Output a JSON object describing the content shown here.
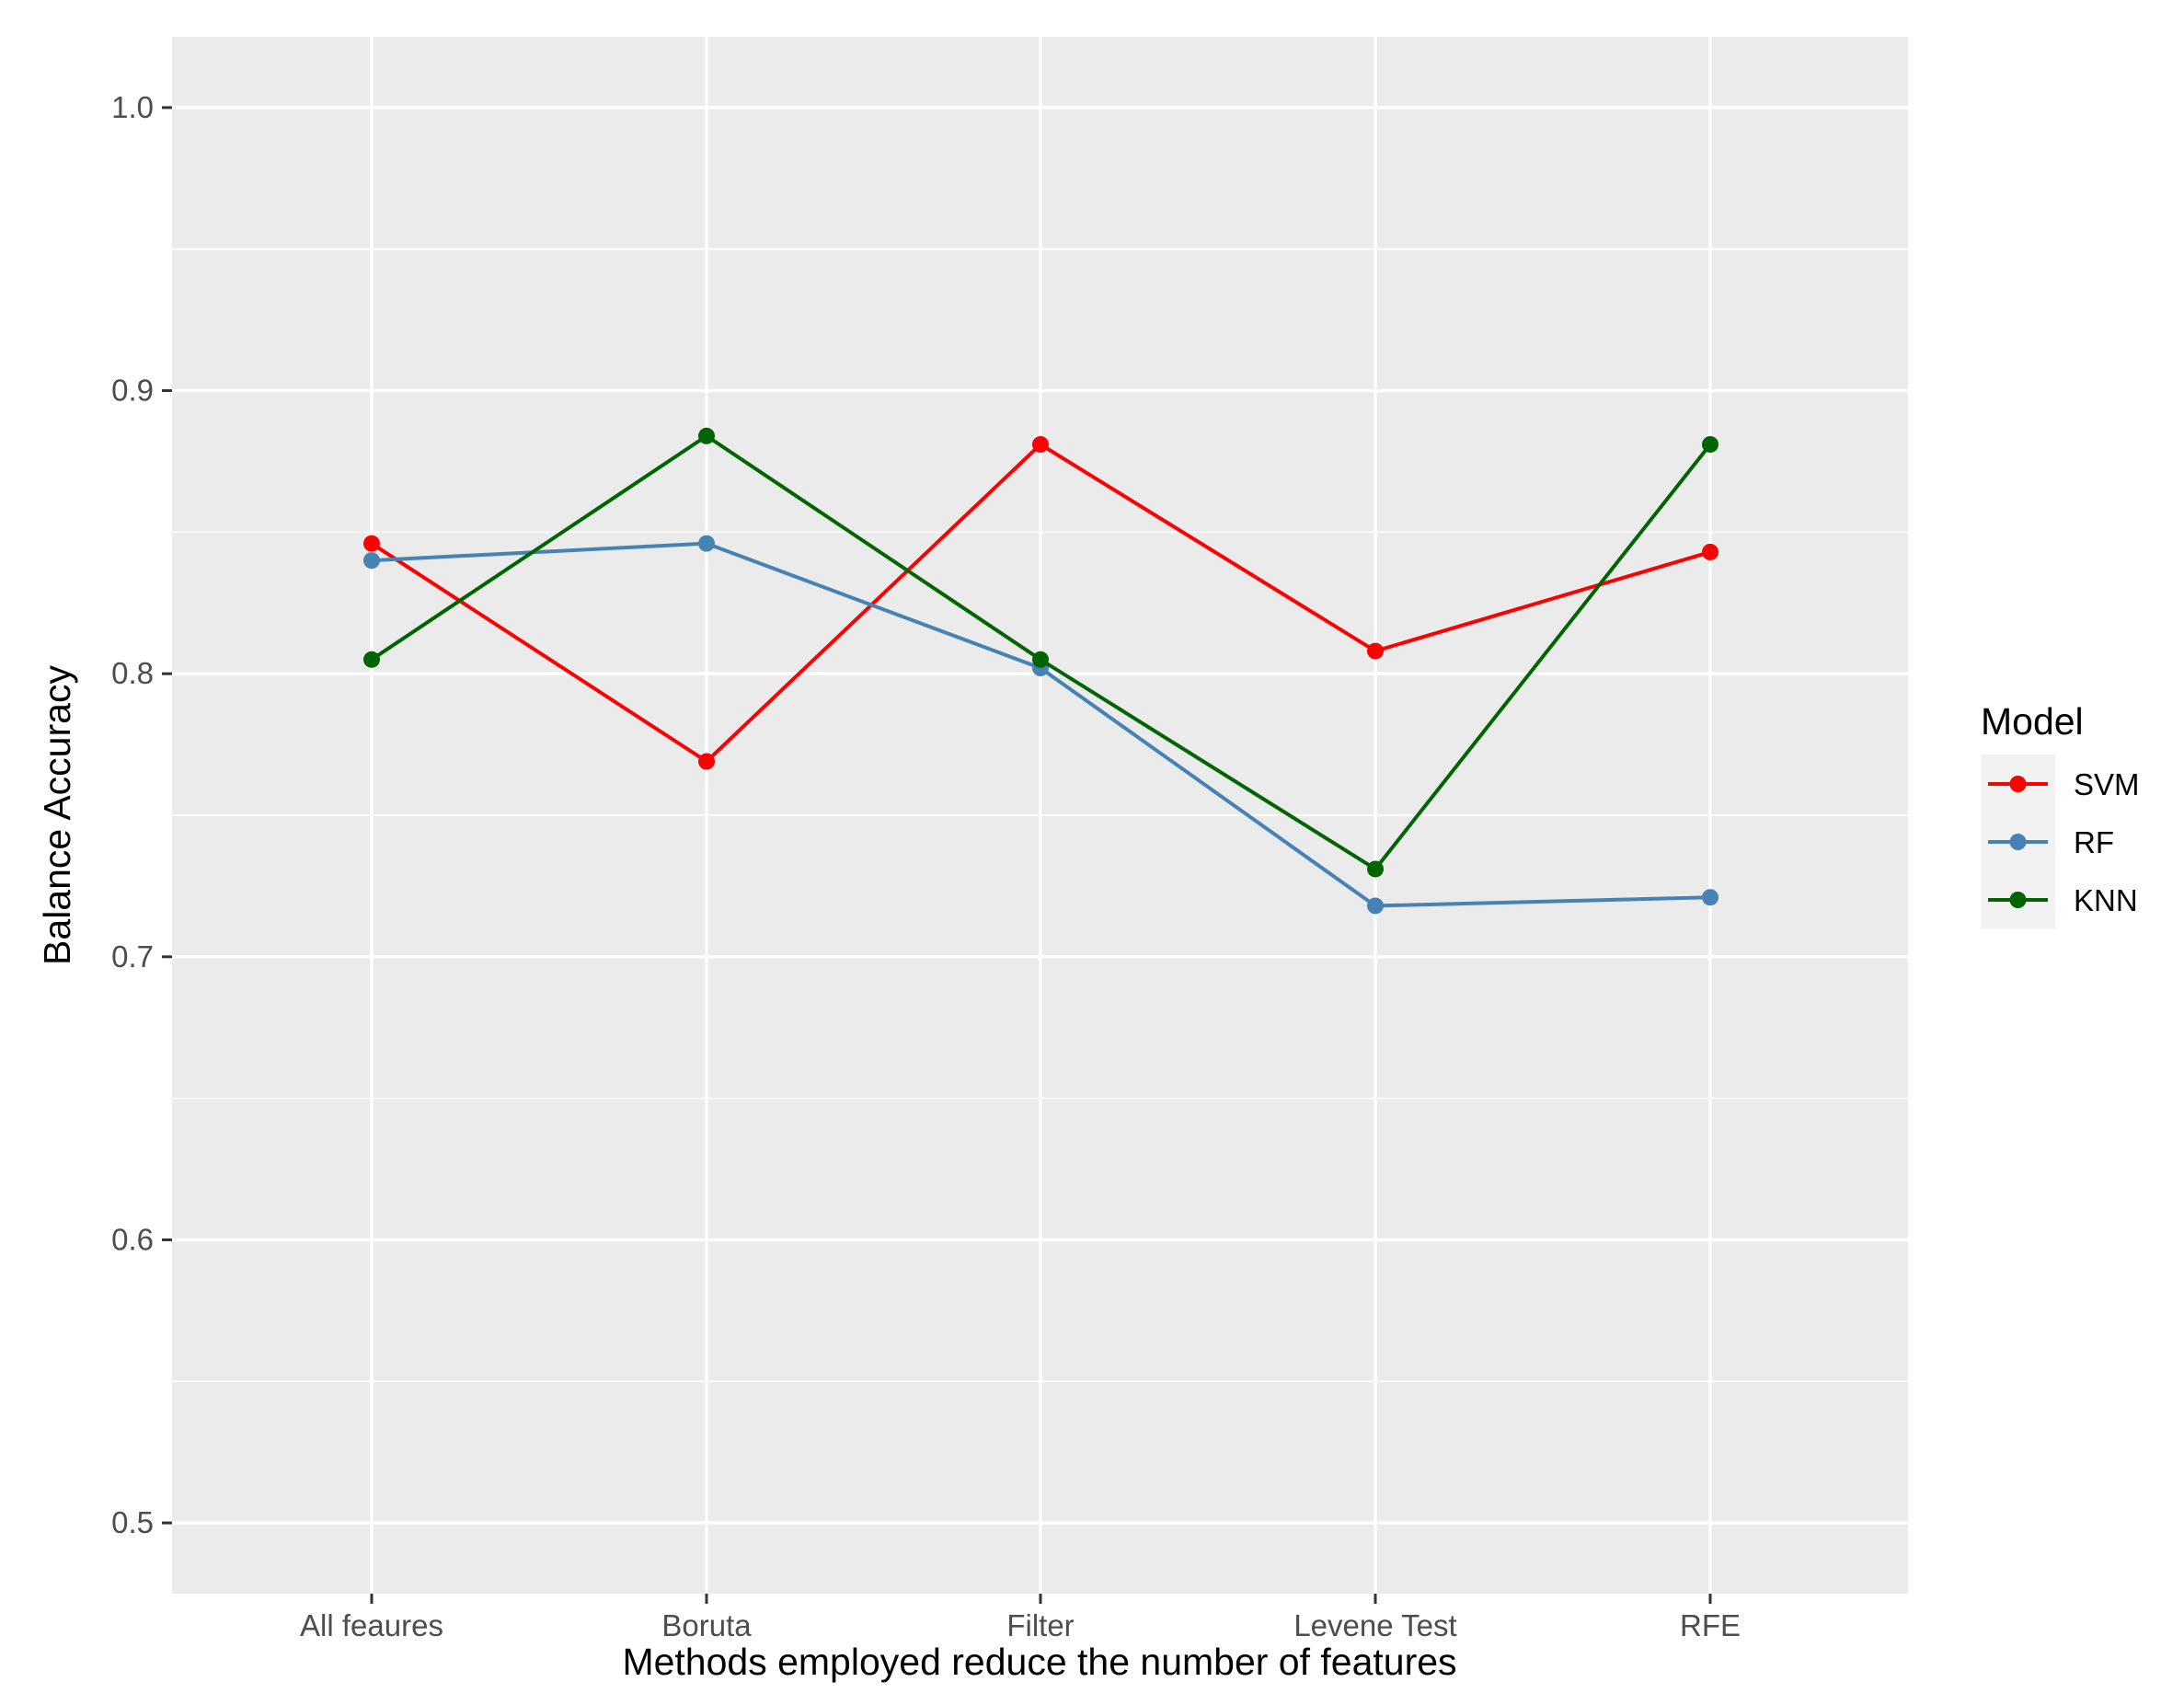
{
  "chart_data": {
    "type": "line",
    "title": "",
    "xlabel": "Methods employed reduce the number of features",
    "ylabel": "Balance Accuracy",
    "categories": [
      "All feaures",
      "Boruta",
      "Filter",
      "Levene Test",
      "RFE"
    ],
    "ylim": [
      0.475,
      1.025
    ],
    "yticks": [
      0.5,
      0.6,
      0.7,
      0.8,
      0.9,
      1.0
    ],
    "ytick_labels": [
      "0.5",
      "0.6",
      "0.7",
      "0.8",
      "0.9",
      "1.0"
    ],
    "grid": true,
    "legend": {
      "title": "Model",
      "position": "right"
    },
    "series": [
      {
        "name": "SVM",
        "color": "#ff0000",
        "values": [
          0.846,
          0.769,
          0.881,
          0.808,
          0.843
        ]
      },
      {
        "name": "RF",
        "color": "#4682b4",
        "values": [
          0.84,
          0.846,
          0.802,
          0.718,
          0.721
        ]
      },
      {
        "name": "KNN",
        "color": "#006400",
        "values": [
          0.805,
          0.884,
          0.805,
          0.731,
          0.881
        ]
      }
    ]
  }
}
